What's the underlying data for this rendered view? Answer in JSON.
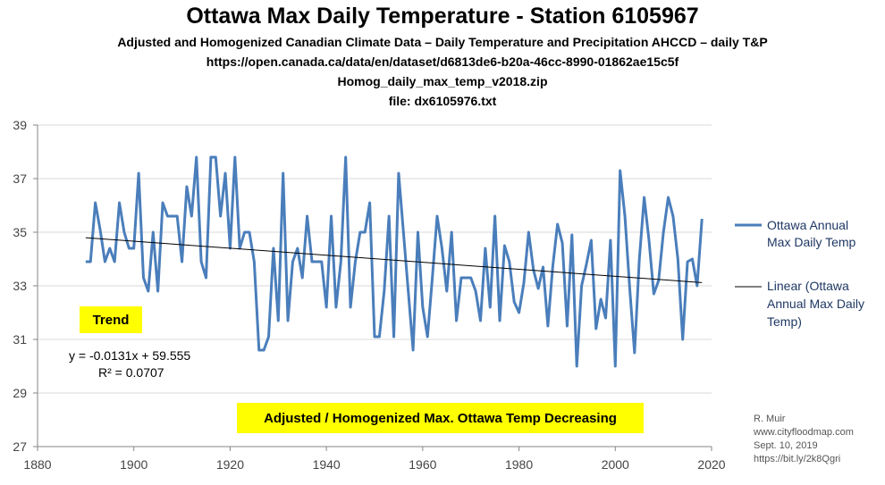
{
  "header": {
    "title": "Ottawa Max Daily Temperature - Station 6105967",
    "line1": "Adjusted and Homogenized Canadian Climate Data – Daily Temperature and Precipitation AHCCD – daily T&P",
    "line2": "https://open.canada.ca/data/en/dataset/d6813de6-b20a-46cc-8990-01862ae15c5f",
    "line3": "Homog_daily_max_temp_v2018.zip",
    "line4": "file: dx6105976.txt"
  },
  "annotations": {
    "trend_label": "Trend",
    "equation": "y = -0.0131x + 59.555",
    "r_squared": "R² = 0.0707",
    "banner": "Adjusted / Homogenized Max. Ottawa Temp Decreasing"
  },
  "credits": [
    "R. Muir",
    "www.cityfloodmap.com",
    "Sept.  10, 2019",
    "https://bit.ly/2k8Qgri"
  ],
  "colors": {
    "series": "#4a7ebb",
    "trend": "#000000",
    "highlight": "#ffff00",
    "grid": "#d9d9d9"
  },
  "chart_data": {
    "type": "line",
    "xlim": [
      1880,
      2020
    ],
    "ylim": [
      27,
      39
    ],
    "xticks": [
      1880,
      1900,
      1920,
      1940,
      1960,
      1980,
      2000,
      2020
    ],
    "yticks": [
      27,
      29,
      31,
      33,
      35,
      37,
      39
    ],
    "grid": "horizontal",
    "legend_position": "right",
    "series": [
      {
        "name": "Ottawa Annual Max Daily Temp",
        "x": [
          1890,
          1891,
          1892,
          1893,
          1894,
          1895,
          1896,
          1897,
          1898,
          1899,
          1900,
          1901,
          1902,
          1903,
          1904,
          1905,
          1906,
          1907,
          1908,
          1909,
          1910,
          1911,
          1912,
          1913,
          1914,
          1915,
          1916,
          1917,
          1918,
          1919,
          1920,
          1921,
          1922,
          1923,
          1924,
          1925,
          1926,
          1927,
          1928,
          1929,
          1930,
          1931,
          1932,
          1933,
          1934,
          1935,
          1936,
          1937,
          1938,
          1939,
          1940,
          1941,
          1942,
          1943,
          1944,
          1945,
          1946,
          1947,
          1948,
          1949,
          1950,
          1951,
          1952,
          1953,
          1954,
          1955,
          1956,
          1957,
          1958,
          1959,
          1960,
          1961,
          1962,
          1963,
          1964,
          1965,
          1966,
          1967,
          1968,
          1969,
          1970,
          1971,
          1972,
          1973,
          1974,
          1975,
          1976,
          1977,
          1978,
          1979,
          1980,
          1981,
          1982,
          1983,
          1984,
          1985,
          1986,
          1987,
          1988,
          1989,
          1990,
          1991,
          1992,
          1993,
          1994,
          1995,
          1996,
          1997,
          1998,
          1999,
          2000,
          2001,
          2002,
          2003,
          2004,
          2005,
          2006,
          2007,
          2008,
          2009,
          2010,
          2011,
          2012,
          2013,
          2014,
          2015,
          2016,
          2017,
          2018
        ],
        "y": [
          33.9,
          33.9,
          36.1,
          35.1,
          33.9,
          34.4,
          33.9,
          36.1,
          35.0,
          34.4,
          34.4,
          37.2,
          33.3,
          32.8,
          35.0,
          32.8,
          36.1,
          35.6,
          35.6,
          35.6,
          33.9,
          36.7,
          35.6,
          37.8,
          33.9,
          33.3,
          37.8,
          37.8,
          35.6,
          37.2,
          34.4,
          37.8,
          34.4,
          35.0,
          35.0,
          33.9,
          30.6,
          30.6,
          31.1,
          34.4,
          31.7,
          37.2,
          31.7,
          33.9,
          34.4,
          33.3,
          35.6,
          33.9,
          33.9,
          33.9,
          32.2,
          35.6,
          32.2,
          33.9,
          37.8,
          32.2,
          33.9,
          35.0,
          35.0,
          36.1,
          31.1,
          31.1,
          32.8,
          35.6,
          31.1,
          37.2,
          35.0,
          32.8,
          30.6,
          35.0,
          32.2,
          31.1,
          33.3,
          35.6,
          34.4,
          32.8,
          35.0,
          31.7,
          33.3,
          33.3,
          33.3,
          32.8,
          31.7,
          34.4,
          32.2,
          35.6,
          31.7,
          34.5,
          33.9,
          32.4,
          32.0,
          33.1,
          35.0,
          33.6,
          32.9,
          33.7,
          31.5,
          33.7,
          35.3,
          34.6,
          31.5,
          34.9,
          30.0,
          33.0,
          33.8,
          34.7,
          31.4,
          32.5,
          31.8,
          34.7,
          30.0,
          37.3,
          35.6,
          32.9,
          30.5,
          34.0,
          36.3,
          34.7,
          32.7,
          33.2,
          35.0,
          36.3,
          35.6,
          34.0,
          31.0,
          33.9,
          34.0,
          33.0,
          35.5
        ]
      },
      {
        "name": "Linear (Ottawa Annual Max Daily Temp)",
        "x": [
          1890,
          2018
        ],
        "y": [
          34.796,
          33.119
        ]
      }
    ]
  }
}
